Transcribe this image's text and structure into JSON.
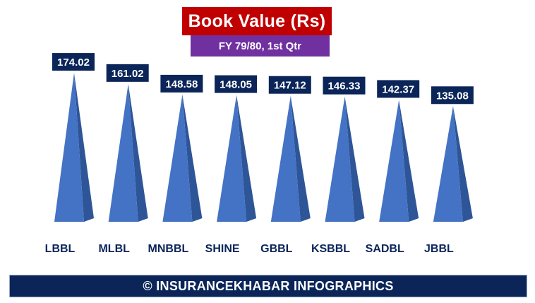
{
  "header": {
    "title": "Book Value (Rs)",
    "subtitle": "FY 79/80, 1st Qtr"
  },
  "footer": {
    "credit": "© INSURANCEKHABAR INFOGRAPHICS"
  },
  "colors": {
    "title_bg": "#c00000",
    "subtitle_bg": "#7030a0",
    "pyramid_front": "#4472c4",
    "pyramid_side": "#2e5597",
    "label_bg": "#0b2559",
    "footer_bg": "#0b2559"
  },
  "chart_data": {
    "type": "bar",
    "title": "Book Value (Rs)",
    "subtitle": "FY 79/80, 1st Qtr",
    "categories": [
      "LBBL",
      "MLBL",
      "MNBBL",
      "SHINE",
      "GBBL",
      "KSBBL",
      "SADBL",
      "JBBL"
    ],
    "values": [
      174.02,
      161.02,
      148.58,
      148.05,
      147.12,
      146.33,
      142.37,
      135.08
    ],
    "value_labels": [
      "174.02",
      "161.02",
      "148.58",
      "148.05",
      "147.12",
      "146.33",
      "142.37",
      "135.08"
    ],
    "bar_shape": "pyramid",
    "grid": false,
    "legend": "none"
  }
}
